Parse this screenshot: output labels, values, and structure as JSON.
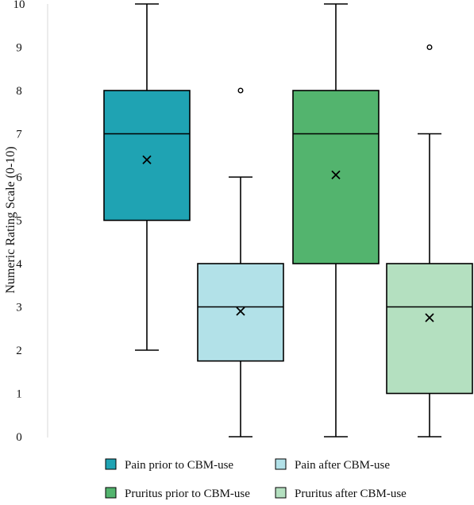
{
  "chart_data": {
    "type": "box",
    "ylabel": "Numeric Rating Scale (0-10)",
    "xlabel": "",
    "ylim": [
      0,
      10
    ],
    "yticks": [
      0,
      1,
      2,
      3,
      4,
      5,
      6,
      7,
      8,
      9,
      10
    ],
    "grid": false,
    "legend_position": "bottom",
    "series": [
      {
        "name": "Pain prior to CBM-use",
        "color": "#1fa3b3",
        "min": 2,
        "q1": 5,
        "median": 7,
        "q3": 8,
        "max": 10,
        "mean": 6.4,
        "outliers": []
      },
      {
        "name": "Pain after CBM-use",
        "color": "#b2e1e8",
        "min": 0,
        "q1": 1.75,
        "median": 3,
        "q3": 4,
        "max": 6,
        "mean": 2.9,
        "outliers": [
          8
        ]
      },
      {
        "name": "Pruritus prior to CBM-use",
        "color": "#53b46e",
        "min": 0,
        "q1": 4,
        "median": 7,
        "q3": 8,
        "max": 10,
        "mean": 6.05,
        "outliers": []
      },
      {
        "name": "Pruritus after CBM-use",
        "color": "#b4e0c0",
        "min": 0,
        "q1": 1,
        "median": 3,
        "q3": 4,
        "max": 7,
        "mean": 2.75,
        "outliers": [
          9
        ]
      }
    ]
  }
}
